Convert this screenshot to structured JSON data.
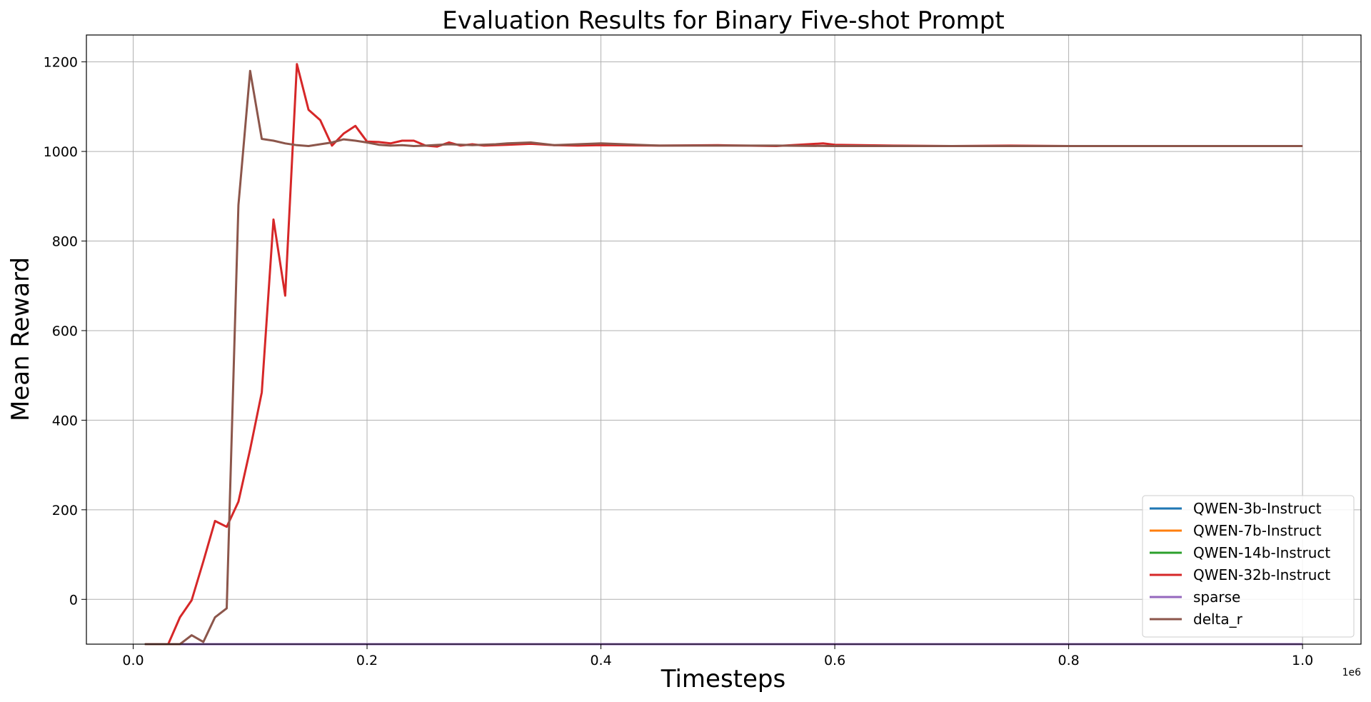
{
  "chart_data": {
    "type": "line",
    "title": "Evaluation Results for Binary Five-shot Prompt",
    "xlabel": "Timesteps",
    "ylabel": "Mean Reward",
    "x_offset_label": "1e6",
    "x_scale": 1000000,
    "xlim": [
      -40000,
      1050000
    ],
    "ylim": [
      -100,
      1260
    ],
    "x_ticks": [
      0,
      200000,
      400000,
      600000,
      800000,
      1000000
    ],
    "x_tick_labels": [
      "0.0",
      "0.2",
      "0.4",
      "0.6",
      "0.8",
      "1.0"
    ],
    "y_ticks": [
      0,
      200,
      400,
      600,
      800,
      1000,
      1200
    ],
    "y_tick_labels": [
      "0",
      "200",
      "400",
      "600",
      "800",
      "1000",
      "1200"
    ],
    "grid": true,
    "legend_position": "lower-right",
    "series": [
      {
        "name": "QWEN-3b-Instruct",
        "color": "#1f77b4",
        "x": [
          10000,
          1000000
        ],
        "y": [
          -100,
          -100
        ]
      },
      {
        "name": "QWEN-7b-Instruct",
        "color": "#ff7f0e",
        "x": [
          10000,
          1000000
        ],
        "y": [
          -100,
          -100
        ]
      },
      {
        "name": "QWEN-14b-Instruct",
        "color": "#2ca02c",
        "x": [
          10000,
          1000000
        ],
        "y": [
          -100,
          -100
        ]
      },
      {
        "name": "QWEN-32b-Instruct",
        "color": "#d62728",
        "x": [
          10000,
          20000,
          30000,
          40000,
          50000,
          60000,
          70000,
          80000,
          90000,
          100000,
          110000,
          120000,
          130000,
          140000,
          150000,
          160000,
          170000,
          180000,
          190000,
          200000,
          210000,
          220000,
          230000,
          240000,
          250000,
          260000,
          270000,
          280000,
          290000,
          300000,
          320000,
          340000,
          360000,
          380000,
          400000,
          450000,
          500000,
          550000,
          590000,
          600000,
          650000,
          700000,
          750000,
          800000,
          850000,
          900000,
          950000,
          1000000
        ],
        "y": [
          -100,
          -100,
          -100,
          -40,
          -2,
          85,
          175,
          162,
          218,
          335,
          462,
          848,
          678,
          1195,
          1093,
          1070,
          1013,
          1040,
          1057,
          1022,
          1021,
          1018,
          1024,
          1024,
          1013,
          1011,
          1020,
          1013,
          1016,
          1013,
          1015,
          1017,
          1014,
          1013,
          1014,
          1013,
          1014,
          1012,
          1018,
          1015,
          1013,
          1012,
          1013,
          1012,
          1012,
          1012,
          1012,
          1012
        ]
      },
      {
        "name": "sparse",
        "color": "#9467bd",
        "x": [
          10000,
          1000000
        ],
        "y": [
          -100,
          -100
        ]
      },
      {
        "name": "delta_r",
        "color": "#8c564b",
        "x": [
          10000,
          20000,
          30000,
          40000,
          50000,
          60000,
          70000,
          80000,
          90000,
          100000,
          110000,
          120000,
          130000,
          140000,
          150000,
          160000,
          170000,
          180000,
          190000,
          200000,
          210000,
          220000,
          230000,
          240000,
          250000,
          270000,
          290000,
          310000,
          320000,
          340000,
          360000,
          380000,
          400000,
          450000,
          500000,
          550000,
          600000,
          650000,
          700000,
          750000,
          800000,
          850000,
          900000,
          950000,
          1000000
        ],
        "y": [
          -100,
          -100,
          -100,
          -100,
          -80,
          -95,
          -40,
          -20,
          880,
          1180,
          1028,
          1024,
          1018,
          1014,
          1012,
          1016,
          1020,
          1027,
          1024,
          1020,
          1015,
          1013,
          1014,
          1012,
          1013,
          1016,
          1014,
          1016,
          1018,
          1020,
          1014,
          1016,
          1018,
          1013,
          1013,
          1013,
          1012,
          1012,
          1012,
          1012,
          1012,
          1012,
          1012,
          1012,
          1012
        ]
      }
    ]
  }
}
